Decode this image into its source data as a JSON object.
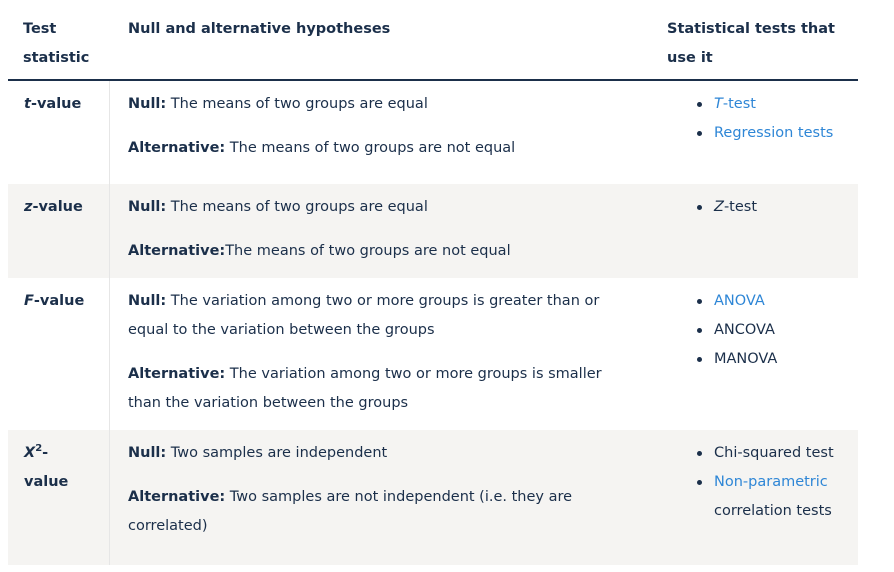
{
  "header": {
    "col1": [
      "Test",
      "statistic"
    ],
    "col2": "Null and alternative hypotheses",
    "col3": [
      "Statistical tests that",
      "use it"
    ]
  },
  "rows": [
    {
      "stat_italic": "t",
      "stat_rest": "-value",
      "null_label": "Null:",
      "null_text": " The means of two groups are equal",
      "alt_label": "Alternative:",
      "alt_text": " The means of two groups are not equal",
      "tests": [
        {
          "italic": "T",
          "text": "-test",
          "link": true
        },
        {
          "text": "Regression tests",
          "link": true
        }
      ]
    },
    {
      "stat_italic": "z",
      "stat_rest": "-value",
      "null_label": "Null:",
      "null_text": " The means of two groups are equal",
      "alt_label": "Alternative:",
      "alt_text": "The means of two groups are not equal",
      "tests": [
        {
          "italic": "Z",
          "text": "-test",
          "link": false
        }
      ]
    },
    {
      "stat_italic": "F",
      "stat_rest": "-value",
      "null_label": "Null:",
      "null_text": " The variation among two or more groups is greater than or equal to the variation between the groups",
      "alt_label": "Alternative:",
      "alt_text": " The variation among two or more groups is smaller than the variation between the groups",
      "tests": [
        {
          "text": "ANOVA",
          "link": true
        },
        {
          "text": "ANCOVA",
          "link": false
        },
        {
          "text": "MANOVA",
          "link": false
        }
      ]
    },
    {
      "stat_italic": "X",
      "stat_sup": "2",
      "stat_rest": "-value",
      "null_label": "Null:",
      "null_text": " Two samples are independent",
      "alt_label": "Alternative:",
      "alt_text": " Two samples are not independent (i.e. they are correlated)",
      "tests": [
        {
          "text": "Chi-squared test",
          "link": false
        },
        {
          "text": "Non-parametric",
          "link": true
        },
        {
          "text": "correlation tests",
          "link": false
        }
      ]
    }
  ]
}
